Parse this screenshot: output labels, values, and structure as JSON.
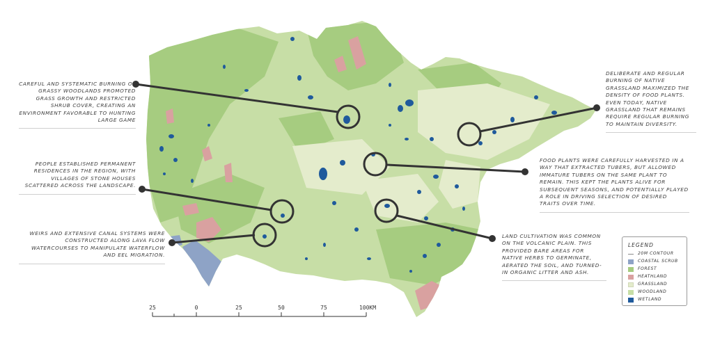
{
  "annotations": {
    "burning_woodlands": "Careful and systematic burning of grassy woodlands promoted grass growth and restricted shrub cover, creating an environment favorable to hunting large game",
    "stone_houses": "People established permanent residences in the region, with villages of stone houses scattered across the landscape.",
    "weirs_canals": "Weirs and extensive canal systems were constructed along lava flow watercourses to manipulate waterflow and eel migration.",
    "grassland_burning": "Deliberate and regular burning of native grassland maximized the density of food plants. Even today, native grassland that remains require regular burning to maintain diversity.",
    "tubers": "Food plants were carefully harvested in a way that extracted tubers, but allowed immature tubers on the same plant to remain. This kept the plants alive for subsequent seasons, and potentially played a role in driving selection of desired traits over time.",
    "cultivation": "Land cultivation was common on the volcanic plain. This provided bare areas for native herbs to germinate, aerated the soil, and turned-in organic litter and ash."
  },
  "legend": {
    "title": "LEGEND",
    "items": [
      {
        "label": "20M CONTOUR",
        "color": "#8a8a8a",
        "kind": "line"
      },
      {
        "label": "COASTAL SCRUB",
        "color": "#8ea3c6",
        "kind": "fill"
      },
      {
        "label": "FOREST",
        "color": "#a6cc80",
        "kind": "fill"
      },
      {
        "label": "HEATHLAND",
        "color": "#d9a1a0",
        "kind": "fill"
      },
      {
        "label": "GRASSLAND",
        "color": "#e4eccc",
        "kind": "fill"
      },
      {
        "label": "WOODLAND",
        "color": "#c7dea6",
        "kind": "fill"
      },
      {
        "label": "WETLAND",
        "color": "#1f5a9c",
        "kind": "fill"
      }
    ]
  },
  "scale": {
    "labels": [
      "25",
      "0",
      "25",
      "50",
      "75",
      "100KM"
    ]
  }
}
